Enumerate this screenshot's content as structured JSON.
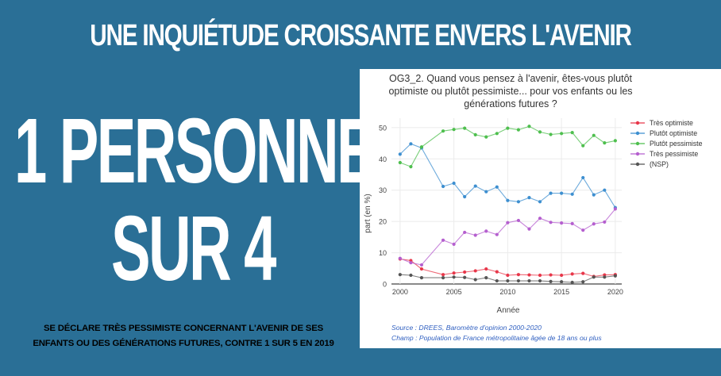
{
  "headline": "UNE INQUIÉTUDE CROISSANTE ENVERS L'AVENIR",
  "big_line1": "1 PERSONNE",
  "big_line2": "SUR 4",
  "subtitle_line1": "SE DÉCLARE TRÈS PESSIMISTE CONCERNANT L'AVENIR DE SES",
  "subtitle_line2": "ENFANTS OU DES GÉNÉRATIONS FUTURES, CONTRE 1 SUR 5 EN 2019",
  "chart_data": {
    "type": "line",
    "title_lines": [
      "OG3_2. Quand vous pensez à l'avenir, êtes-vous plutôt",
      "optimiste ou plutôt pessimiste... pour vos enfants ou les",
      "générations futures ?"
    ],
    "xlabel": "Année",
    "ylabel": "part (en %)",
    "xlim": [
      1999.2,
      2020.6
    ],
    "ylim": [
      0,
      53
    ],
    "xticks": [
      2000,
      2005,
      2010,
      2015,
      2020
    ],
    "yticks": [
      0,
      10,
      20,
      30,
      40,
      50
    ],
    "x": [
      2000,
      2001,
      2002,
      2004,
      2005,
      2006,
      2007,
      2008,
      2009,
      2010,
      2011,
      2012,
      2013,
      2014,
      2015,
      2016,
      2017,
      2018,
      2019,
      2020
    ],
    "series": [
      {
        "name": "Très optimiste",
        "color": "#e8374a",
        "values": [
          8,
          7.5,
          4.8,
          3,
          3.5,
          3.8,
          4.2,
          4.8,
          3.9,
          2.8,
          3,
          2.9,
          2.8,
          2.9,
          2.8,
          3.2,
          3.4,
          2.4,
          2.9,
          3
        ]
      },
      {
        "name": "Plutôt optimiste",
        "color": "#3d8fd0",
        "values": [
          41.5,
          44.8,
          43.5,
          31.2,
          32.2,
          27.9,
          31.3,
          29.5,
          31,
          26.7,
          26.3,
          27.6,
          26.3,
          29,
          29,
          28.7,
          34,
          28.5,
          30,
          24.4
        ]
      },
      {
        "name": "Plutôt pessimiste",
        "color": "#4ebf4e",
        "values": [
          38.8,
          37.5,
          43.8,
          48.9,
          49.4,
          49.8,
          47.7,
          47,
          48.1,
          49.8,
          49.3,
          50.4,
          48.6,
          47.8,
          48.1,
          48.4,
          44.2,
          47.5,
          45.1,
          45.8
        ]
      },
      {
        "name": "Très pessimiste",
        "color": "#b55fcf",
        "values": [
          8.2,
          6.8,
          6.1,
          14,
          12.7,
          16.5,
          15.6,
          16.9,
          15.8,
          19.6,
          20.3,
          17.6,
          21,
          19.7,
          19.5,
          19.3,
          17.2,
          19.2,
          19.8,
          24
        ]
      },
      {
        "name": "(NSP)",
        "color": "#555555",
        "values": [
          3,
          2.8,
          2,
          2,
          2.2,
          2.1,
          1.4,
          2,
          1,
          1,
          1,
          1,
          1,
          0.8,
          0.7,
          0.5,
          0.7,
          2.2,
          2.2,
          2.6
        ]
      }
    ],
    "legend_position": "right",
    "source": "Source : DREES, Baromètre d'opinion 2000-2020",
    "champ": "Champ : Population de France métropolitaine âgée de 18 ans ou plus",
    "colors": {
      "background": "#2a6f96",
      "source_text": "#2f5fc0"
    }
  }
}
